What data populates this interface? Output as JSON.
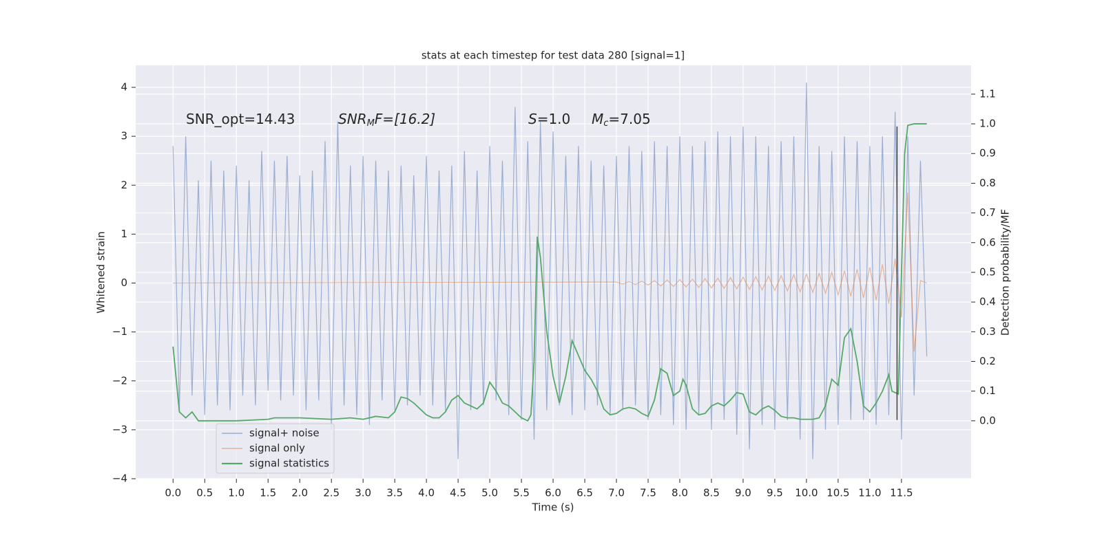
{
  "chart_data": {
    "type": "line",
    "title": "stats at each timestep for test data 280 [signal=1]",
    "xlabel": "Time (s)",
    "ylabel": "Whitened strain",
    "y2label": "Detection probability/MF",
    "annotations": [
      [
        "SNR_opt=14.43"
      ],
      [
        "SNR",
        "M",
        "F=[16.2]"
      ],
      [
        "S",
        "=1.0"
      ],
      [
        "M",
        "c",
        "=7.05"
      ]
    ],
    "xlim": [
      -0.59,
      12.6
    ],
    "ylim": [
      -4.0,
      4.45
    ],
    "y2lim": [
      -0.195,
      1.197
    ],
    "xticks": [
      {
        "value": 0,
        "label": "0.0"
      },
      0.5,
      {
        "value": 1,
        "label": "1.0"
      },
      1.5,
      {
        "value": 2,
        "label": "2.0"
      },
      2.5,
      {
        "value": 3,
        "label": "3.0"
      },
      3.5,
      {
        "value": 4,
        "label": "4.0"
      },
      4.5,
      {
        "value": 5,
        "label": "5.0"
      },
      5.5,
      {
        "value": 6,
        "label": "6.0"
      },
      6.5,
      {
        "value": 7,
        "label": "7.0"
      },
      7.5,
      {
        "value": 8,
        "label": "8.0"
      },
      8.5,
      {
        "value": 9,
        "label": "9.0"
      },
      9.5,
      {
        "value": 10,
        "label": "10.0"
      },
      10.5,
      {
        "value": 11,
        "label": "11.0"
      },
      11.5
    ],
    "yticks": [
      {
        "value": -4,
        "label": "−4"
      },
      {
        "value": -3,
        "label": "−3"
      },
      {
        "value": -2,
        "label": "−2"
      },
      {
        "value": -1,
        "label": "−1"
      },
      0,
      1,
      2,
      3,
      4
    ],
    "y2ticks": [
      {
        "value": 0,
        "label": "0.0"
      },
      0.1,
      0.2,
      0.3,
      0.4,
      0.5,
      0.6,
      0.7,
      0.8,
      0.9,
      {
        "value": 1,
        "label": "1.0"
      },
      1.1
    ],
    "grid": true,
    "legend_loc": "lower left",
    "series": [
      {
        "name": "signal+ noise",
        "color": "#4c72b0",
        "x": [
          0.0,
          0.1,
          0.2,
          0.3,
          0.4,
          0.5,
          0.6,
          0.7,
          0.8,
          0.9,
          1.0,
          1.1,
          1.2,
          1.3,
          1.4,
          1.5,
          1.6,
          1.7,
          1.8,
          1.9,
          2.0,
          2.1,
          2.2,
          2.3,
          2.4,
          2.5,
          2.6,
          2.7,
          2.8,
          2.9,
          3.0,
          3.1,
          3.2,
          3.3,
          3.4,
          3.5,
          3.6,
          3.7,
          3.8,
          3.9,
          4.0,
          4.1,
          4.2,
          4.3,
          4.4,
          4.5,
          4.6,
          4.7,
          4.8,
          4.9,
          5.0,
          5.1,
          5.2,
          5.3,
          5.4,
          5.5,
          5.6,
          5.7,
          5.8,
          5.9,
          6.0,
          6.1,
          6.2,
          6.3,
          6.4,
          6.5,
          6.6,
          6.7,
          6.8,
          6.9,
          7.0,
          7.1,
          7.2,
          7.3,
          7.4,
          7.5,
          7.6,
          7.7,
          7.8,
          7.9,
          8.0,
          8.1,
          8.2,
          8.3,
          8.4,
          8.5,
          8.6,
          8.7,
          8.8,
          8.9,
          9.0,
          9.1,
          9.2,
          9.3,
          9.4,
          9.5,
          9.6,
          9.7,
          9.8,
          9.9,
          10.0,
          10.1,
          10.2,
          10.3,
          10.4,
          10.5,
          10.6,
          10.7,
          10.8,
          10.9,
          11.0,
          11.1,
          11.2,
          11.3,
          11.4,
          11.5,
          11.6,
          11.7,
          11.8,
          11.9
        ],
        "values": [
          2.8,
          -2.6,
          3.0,
          -2.3,
          2.1,
          -2.7,
          2.5,
          -2.5,
          2.3,
          -2.6,
          2.4,
          -2.3,
          2.1,
          -2.5,
          2.7,
          -2.2,
          2.5,
          -2.4,
          2.6,
          -2.3,
          2.2,
          -2.6,
          2.3,
          -2.4,
          2.9,
          -3.0,
          3.3,
          -2.5,
          2.4,
          -2.7,
          2.6,
          -2.9,
          2.5,
          -2.4,
          2.3,
          -2.6,
          2.4,
          -2.5,
          2.2,
          -2.3,
          2.6,
          -2.5,
          2.3,
          -2.6,
          2.4,
          -3.6,
          2.7,
          -2.6,
          2.3,
          -2.5,
          2.8,
          -2.4,
          2.5,
          -2.7,
          3.6,
          -2.8,
          2.9,
          -3.2,
          3.3,
          -2.6,
          3.1,
          -2.5,
          2.6,
          -2.7,
          2.8,
          -2.6,
          2.5,
          -2.5,
          2.4,
          -2.7,
          2.6,
          -2.6,
          2.8,
          -2.5,
          2.7,
          -2.8,
          2.9,
          -2.7,
          2.8,
          -2.9,
          3.0,
          -3.0,
          2.8,
          -2.7,
          2.9,
          -3.0,
          3.1,
          -2.8,
          3.0,
          -3.1,
          3.2,
          -3.4,
          3.0,
          -2.9,
          2.8,
          -3.0,
          2.9,
          -2.8,
          3.0,
          -3.2,
          4.1,
          -3.6,
          2.8,
          -3.0,
          2.7,
          -2.9,
          3.0,
          -2.8,
          2.9,
          -2.8,
          2.8,
          -2.9,
          3.0,
          -2.7,
          3.5,
          -3.2,
          3.0,
          -2.3,
          2.5,
          -1.5
        ]
      },
      {
        "name": "signal only",
        "color": "#dd8452",
        "x": [
          0.0,
          7.0,
          7.1,
          7.2,
          7.3,
          7.4,
          7.5,
          7.6,
          7.7,
          7.8,
          7.9,
          8.0,
          8.1,
          8.2,
          8.3,
          8.4,
          8.5,
          8.6,
          8.7,
          8.8,
          8.9,
          9.0,
          9.1,
          9.2,
          9.3,
          9.4,
          9.5,
          9.6,
          9.7,
          9.8,
          9.9,
          10.0,
          10.1,
          10.2,
          10.3,
          10.4,
          10.5,
          10.6,
          10.7,
          10.8,
          10.9,
          11.0,
          11.1,
          11.2,
          11.3,
          11.4,
          11.5,
          11.6,
          11.7,
          11.8,
          11.9
        ],
        "values": [
          0.0,
          0.02,
          -0.02,
          0.03,
          -0.03,
          0.04,
          -0.04,
          0.05,
          -0.06,
          0.06,
          -0.07,
          0.07,
          -0.08,
          0.08,
          -0.09,
          0.09,
          -0.1,
          0.1,
          -0.11,
          0.11,
          -0.12,
          0.12,
          -0.13,
          0.13,
          -0.14,
          0.14,
          -0.15,
          0.15,
          -0.16,
          0.17,
          -0.18,
          0.18,
          -0.19,
          0.2,
          -0.21,
          0.22,
          -0.24,
          0.25,
          -0.27,
          0.28,
          -0.3,
          0.32,
          -0.35,
          0.38,
          -0.42,
          0.5,
          -0.7,
          1.85,
          -1.4,
          0.05,
          0.0
        ]
      },
      {
        "name": "signal statistics",
        "color": "#55a868",
        "axis": "y2",
        "x": [
          0.0,
          0.1,
          0.2,
          0.3,
          0.4,
          0.5,
          1.0,
          1.5,
          1.6,
          2.0,
          2.5,
          2.8,
          3.0,
          3.2,
          3.4,
          3.5,
          3.6,
          3.7,
          3.8,
          3.9,
          4.0,
          4.1,
          4.2,
          4.3,
          4.4,
          4.5,
          4.6,
          4.7,
          4.8,
          4.9,
          5.0,
          5.1,
          5.2,
          5.3,
          5.4,
          5.5,
          5.6,
          5.65,
          5.7,
          5.75,
          5.8,
          5.9,
          6.0,
          6.1,
          6.2,
          6.3,
          6.4,
          6.5,
          6.6,
          6.7,
          6.8,
          6.9,
          7.0,
          7.1,
          7.2,
          7.3,
          7.4,
          7.5,
          7.6,
          7.7,
          7.8,
          7.9,
          8.0,
          8.05,
          8.1,
          8.2,
          8.3,
          8.4,
          8.5,
          8.6,
          8.7,
          8.8,
          8.9,
          9.0,
          9.1,
          9.2,
          9.3,
          9.4,
          9.5,
          9.6,
          9.7,
          9.8,
          9.9,
          10.0,
          10.1,
          10.2,
          10.3,
          10.4,
          10.5,
          10.6,
          10.7,
          10.8,
          10.9,
          11.0,
          11.1,
          11.2,
          11.3,
          11.35,
          11.45,
          11.55,
          11.6,
          11.7,
          11.9
        ],
        "values": [
          0.25,
          0.03,
          0.01,
          0.03,
          0.0,
          0.0,
          0.0,
          0.005,
          0.01,
          0.01,
          0.005,
          0.01,
          0.005,
          0.015,
          0.01,
          0.03,
          0.08,
          0.075,
          0.06,
          0.04,
          0.02,
          0.01,
          0.01,
          0.03,
          0.07,
          0.085,
          0.06,
          0.05,
          0.04,
          0.06,
          0.13,
          0.1,
          0.06,
          0.05,
          0.03,
          0.01,
          0.0,
          0.02,
          0.2,
          0.62,
          0.55,
          0.3,
          0.15,
          0.06,
          0.15,
          0.27,
          0.22,
          0.17,
          0.14,
          0.1,
          0.04,
          0.02,
          0.025,
          0.04,
          0.045,
          0.04,
          0.025,
          0.015,
          0.07,
          0.175,
          0.16,
          0.085,
          0.1,
          0.14,
          0.12,
          0.04,
          0.02,
          0.025,
          0.05,
          0.06,
          0.05,
          0.07,
          0.095,
          0.09,
          0.03,
          0.02,
          0.04,
          0.05,
          0.035,
          0.015,
          0.01,
          0.01,
          0.005,
          0.005,
          0.005,
          0.01,
          0.05,
          0.14,
          0.12,
          0.28,
          0.31,
          0.2,
          0.05,
          0.03,
          0.06,
          0.1,
          0.155,
          0.1,
          0.09,
          0.9,
          0.995,
          1.0,
          1.0
        ]
      }
    ],
    "vline": {
      "x": 11.43,
      "ymin": -2.8,
      "ymax": 3.2,
      "color": "#404040"
    }
  }
}
